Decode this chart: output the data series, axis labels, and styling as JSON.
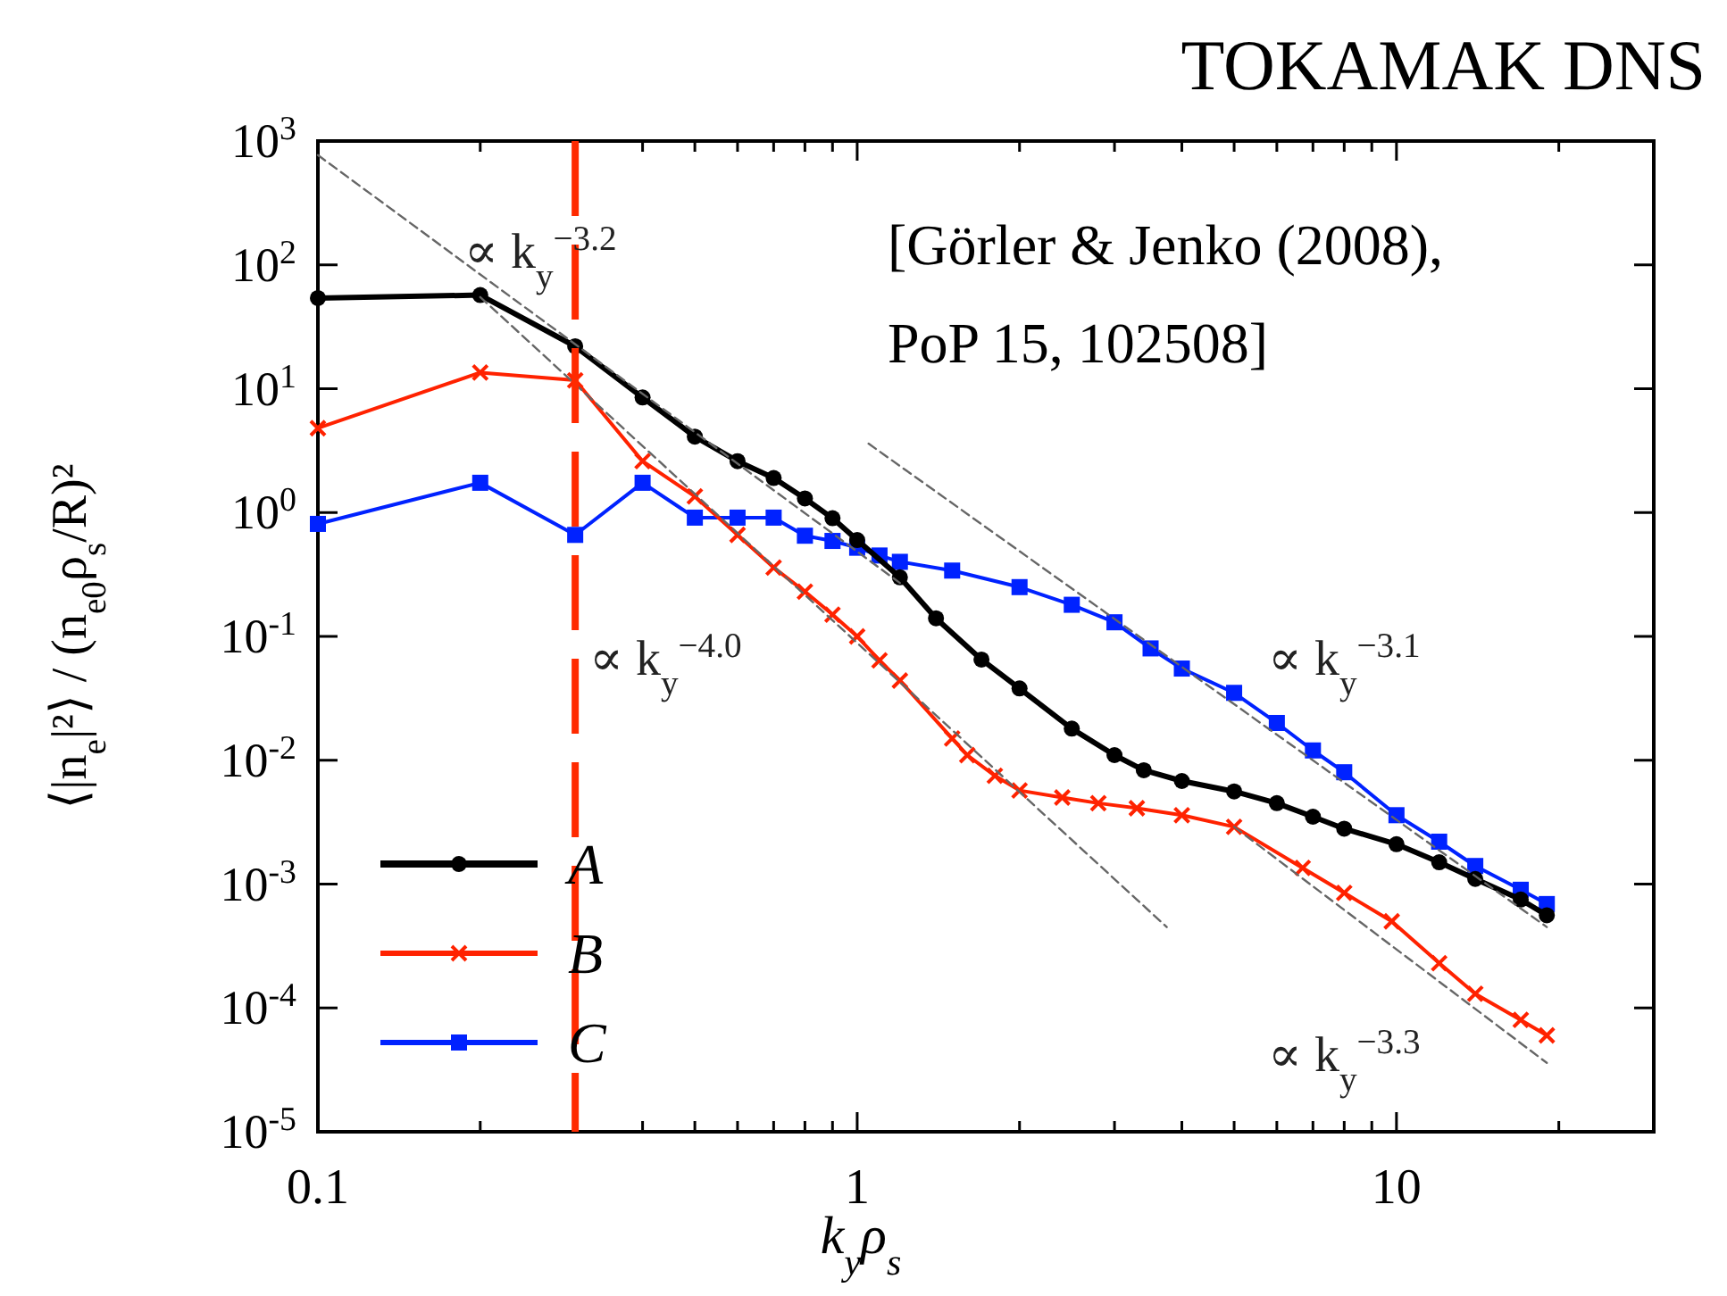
{
  "chart_data": {
    "type": "line",
    "title": "TOKAMAK DNS",
    "xlabel": "k$_{y}$ρ$_{s}$",
    "ylabel": "⟨|n$_{e}$|²⟩ / (n$_{e0}$ρ$_{s}$/R)²",
    "log": "xy",
    "xlim": [
      0.1,
      30
    ],
    "ylim": [
      1e-05,
      1000
    ],
    "xticks": [
      0.1,
      {
        "value": 0.2,
        "label": null
      },
      {
        "value": 0.3,
        "label": null
      },
      {
        "value": 0.4,
        "label": null
      },
      {
        "value": 0.5,
        "label": null
      },
      {
        "value": 0.6,
        "label": null
      },
      {
        "value": 0.7,
        "label": null
      },
      {
        "value": 0.8,
        "label": null
      },
      {
        "value": 0.9,
        "label": null
      },
      1,
      {
        "value": 2,
        "label": null
      },
      {
        "value": 3,
        "label": null
      },
      {
        "value": 4,
        "label": null
      },
      {
        "value": 5,
        "label": null
      },
      {
        "value": 6,
        "label": null
      },
      {
        "value": 7,
        "label": null
      },
      {
        "value": 8,
        "label": null
      },
      {
        "value": 9,
        "label": null
      },
      10,
      {
        "value": 20,
        "label": null
      }
    ],
    "yticks": [
      {
        "value": 1e-05,
        "label": "10$^{-5}$"
      },
      {
        "value": 0.0001,
        "label": "10$^{-4}$"
      },
      {
        "value": 0.001,
        "label": "10$^{-3}$"
      },
      {
        "value": 0.01,
        "label": "10$^{-2}$"
      },
      {
        "value": 0.1,
        "label": "10$^{-1}$"
      },
      {
        "value": 1,
        "label": "10$^{0}$"
      },
      {
        "value": 10,
        "label": "10$^{1}$"
      },
      {
        "value": 100,
        "label": "10$^{2}$"
      },
      {
        "value": 1000,
        "label": "10$^{3}$"
      }
    ],
    "grid": false,
    "legend": "bottom left",
    "series": [
      {
        "name": "A",
        "color": "#000000",
        "marker": "circle",
        "x": [
          0.1,
          0.2,
          0.3,
          0.4,
          0.5,
          0.6,
          0.7,
          0.8,
          0.9,
          1.0,
          1.2,
          1.4,
          1.7,
          2,
          2.5,
          3,
          3.4,
          4,
          5,
          6,
          7,
          8,
          10,
          12,
          14,
          17,
          19
        ],
        "values": [
          54,
          57,
          22,
          8.5,
          4.1,
          2.6,
          1.9,
          1.3,
          0.9,
          0.6,
          0.3,
          0.14,
          0.065,
          0.038,
          0.018,
          0.011,
          0.0083,
          0.0068,
          0.0056,
          0.0045,
          0.0035,
          0.0028,
          0.0021,
          0.0015,
          0.0011,
          0.00075,
          0.00056
        ]
      },
      {
        "name": "B",
        "color": "#ff2200",
        "marker": "cross",
        "x": [
          0.1,
          0.2,
          0.3,
          0.4,
          0.5,
          0.6,
          0.7,
          0.8,
          0.9,
          1.0,
          1.1,
          1.2,
          1.5,
          1.6,
          1.8,
          2,
          2.4,
          2.8,
          3.3,
          4,
          5,
          6.7,
          8,
          9.8,
          12,
          14,
          17,
          19
        ],
        "values": [
          4.8,
          13.5,
          11.7,
          2.6,
          1.35,
          0.66,
          0.36,
          0.23,
          0.15,
          0.1,
          0.064,
          0.044,
          0.015,
          0.011,
          0.0075,
          0.0057,
          0.005,
          0.0045,
          0.0041,
          0.0036,
          0.0029,
          0.00135,
          0.00085,
          0.0005,
          0.00023,
          0.00013,
          8e-05,
          6e-05
        ]
      },
      {
        "name": "C",
        "color": "#0022ff",
        "marker": "square",
        "x": [
          0.1,
          0.2,
          0.3,
          0.4,
          0.5,
          0.6,
          0.7,
          0.8,
          0.9,
          1.0,
          1.1,
          1.2,
          1.5,
          2,
          2.5,
          3,
          3.5,
          4,
          5,
          6,
          7,
          8,
          10,
          12,
          14,
          17,
          19
        ],
        "values": [
          0.81,
          1.74,
          0.66,
          1.74,
          0.91,
          0.91,
          0.91,
          0.65,
          0.59,
          0.52,
          0.45,
          0.4,
          0.34,
          0.25,
          0.18,
          0.13,
          0.08,
          0.055,
          0.035,
          0.02,
          0.012,
          0.008,
          0.0036,
          0.0022,
          0.0014,
          0.0009,
          0.00069
        ]
      },
      {
        "color": "#666666",
        "marker": "none",
        "line_style": "dashed",
        "x": [
          0.1,
          1.2
        ],
        "values": [
          770,
          0.27
        ]
      },
      {
        "color": "#666666",
        "marker": "none",
        "line_style": "dashed",
        "x": [
          0.2,
          3.75
        ],
        "values": [
          55,
          0.00045
        ]
      },
      {
        "color": "#666666",
        "marker": "none",
        "line_style": "dashed",
        "x": [
          1.05,
          19
        ],
        "values": [
          3.6,
          0.00045
        ]
      },
      {
        "color": "#666666",
        "marker": "none",
        "line_style": "dashed",
        "x": [
          5,
          19
        ],
        "values": [
          0.0029,
          3.6e-05
        ]
      }
    ],
    "ref_lines": [
      {
        "axis": "x",
        "value": 0.3,
        "color": "#ff2a00",
        "line_style": "dashed"
      }
    ],
    "annotations": [
      "∝ k$_{y}$$^{−3.2}$",
      "∝ k$_{y}$$^{−4.0}$",
      "∝ k$_{y}$$^{−3.1}$",
      "∝ k$_{y}$$^{−3.3}$",
      "[Görler & Jenko (2008),",
      "PoP 15, 102508]"
    ]
  }
}
